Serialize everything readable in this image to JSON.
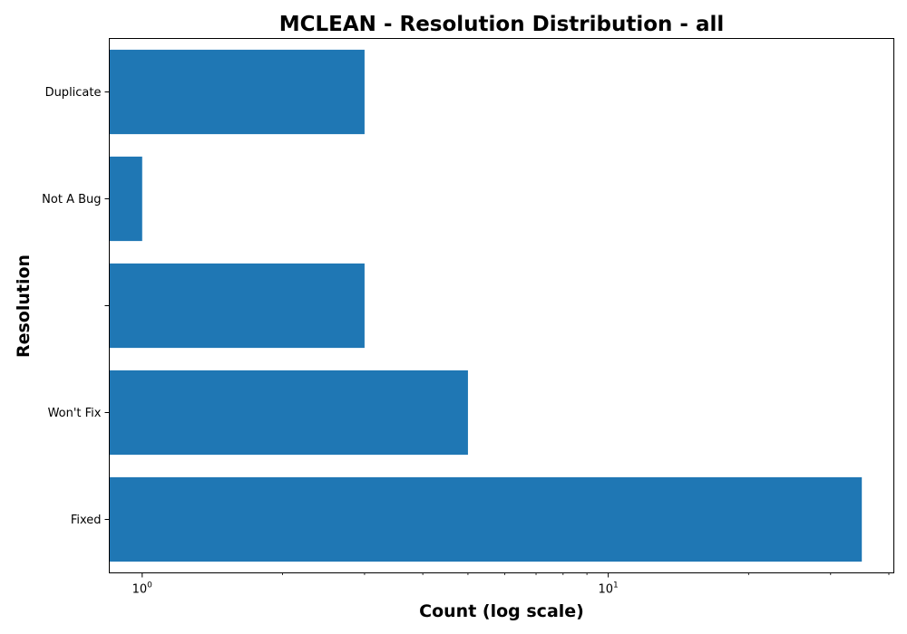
{
  "chart_data": {
    "type": "bar",
    "orientation": "horizontal",
    "title": "MCLEAN - Resolution Distribution - all",
    "xlabel": "Count (log scale)",
    "ylabel": "Resolution",
    "x_scale": "log",
    "xlim": [
      0.85,
      41
    ],
    "x_ticks": [
      {
        "value": 1,
        "base": "10",
        "exponent": "0"
      },
      {
        "value": 10,
        "base": "10",
        "exponent": "1"
      }
    ],
    "categories": [
      "Fixed",
      "Won't Fix",
      "",
      "Not A Bug",
      "Duplicate"
    ],
    "values": [
      35,
      5,
      3,
      1,
      3
    ],
    "bar_color": "#1f77b4",
    "grid": false
  }
}
